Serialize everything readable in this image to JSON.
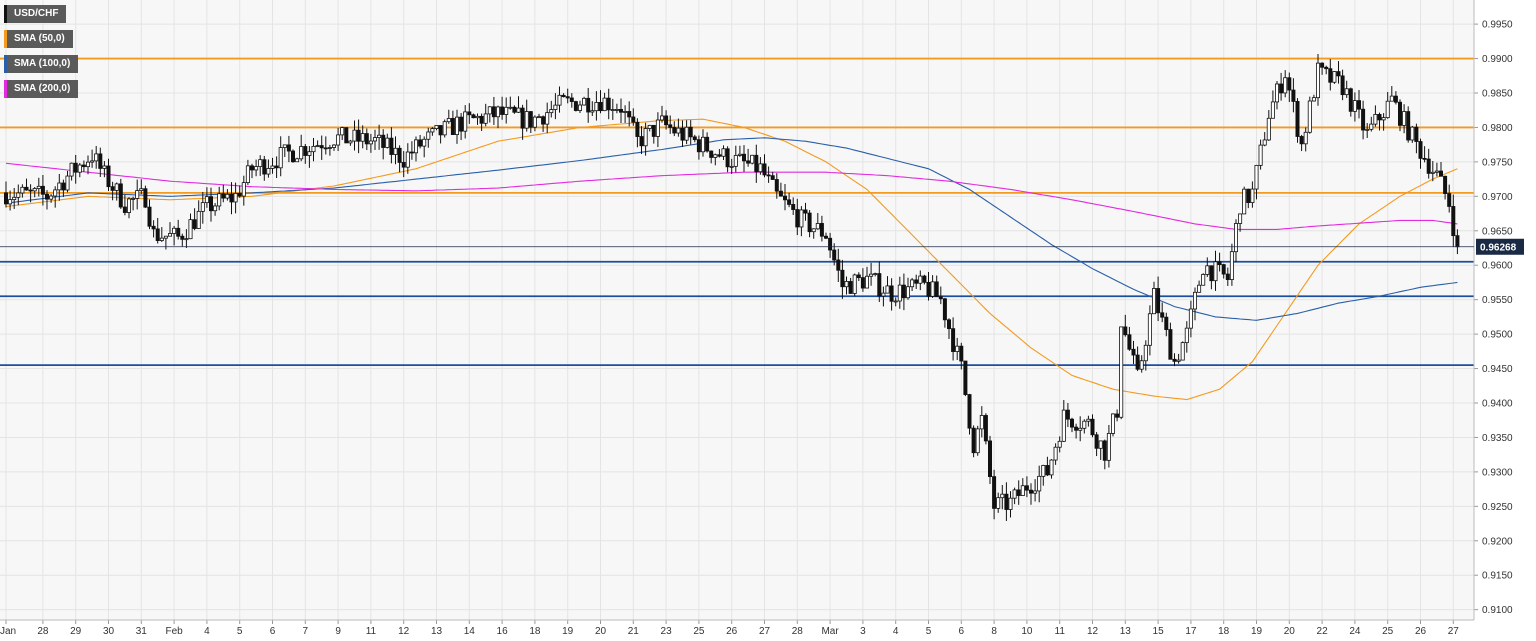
{
  "chart_data": {
    "type": "candlestick",
    "symbol": "USD/CHF",
    "ylim": [
      0.9085,
      0.9985
    ],
    "y_ticks": [
      0.91,
      0.915,
      0.92,
      0.925,
      0.93,
      0.935,
      0.94,
      0.945,
      0.95,
      0.955,
      0.96,
      0.965,
      0.97,
      0.975,
      0.98,
      0.985,
      0.99,
      0.995
    ],
    "y_tick_labels": [
      "0.9100",
      "0.9150",
      "0.9200",
      "0.9250",
      "0.9300",
      "0.9350",
      "0.9400",
      "0.9450",
      "0.9500",
      "0.9550",
      "0.9600",
      "0.9650",
      "0.9700",
      "0.9750",
      "0.9800",
      "0.9850",
      "0.9900",
      "0.9950"
    ],
    "x_ticks": [
      {
        "label": "Jan",
        "index": 0
      },
      {
        "label": "28",
        "index": 9
      },
      {
        "label": "29",
        "index": 17
      },
      {
        "label": "30",
        "index": 25
      },
      {
        "label": "31",
        "index": 33
      },
      {
        "label": "Feb",
        "index": 41
      },
      {
        "label": "4",
        "index": 49
      },
      {
        "label": "5",
        "index": 57
      },
      {
        "label": "6",
        "index": 65
      },
      {
        "label": "7",
        "index": 73
      },
      {
        "label": "9",
        "index": 81
      },
      {
        "label": "11",
        "index": 89
      },
      {
        "label": "12",
        "index": 97
      },
      {
        "label": "13",
        "index": 105
      },
      {
        "label": "14",
        "index": 113
      },
      {
        "label": "16",
        "index": 121
      },
      {
        "label": "18",
        "index": 129
      },
      {
        "label": "19",
        "index": 137
      },
      {
        "label": "20",
        "index": 145
      },
      {
        "label": "21",
        "index": 153
      },
      {
        "label": "23",
        "index": 161
      },
      {
        "label": "25",
        "index": 169
      },
      {
        "label": "26",
        "index": 177
      },
      {
        "label": "27",
        "index": 185
      },
      {
        "label": "28",
        "index": 193
      },
      {
        "label": "Mar",
        "index": 201
      },
      {
        "label": "3",
        "index": 209
      },
      {
        "label": "4",
        "index": 217
      },
      {
        "label": "5",
        "index": 225
      },
      {
        "label": "6",
        "index": 233
      },
      {
        "label": "8",
        "index": 241
      },
      {
        "label": "10",
        "index": 249
      },
      {
        "label": "11",
        "index": 257
      },
      {
        "label": "12",
        "index": 265
      },
      {
        "label": "13",
        "index": 273
      },
      {
        "label": "15",
        "index": 281
      },
      {
        "label": "17",
        "index": 289
      },
      {
        "label": "18",
        "index": 297
      },
      {
        "label": "19",
        "index": 305
      },
      {
        "label": "20",
        "index": 313
      },
      {
        "label": "22",
        "index": 321
      },
      {
        "label": "24",
        "index": 329
      },
      {
        "label": "25",
        "index": 337
      },
      {
        "label": "26",
        "index": 345
      },
      {
        "label": "27",
        "index": 353
      }
    ],
    "legend": [
      {
        "label": "USD/CHF",
        "color": "#111111"
      },
      {
        "label": "SMA (50,0)",
        "color": "#f39a1f"
      },
      {
        "label": "SMA (100,0)",
        "color": "#2a5fa8"
      },
      {
        "label": "SMA (200,0)",
        "color": "#e22be0"
      }
    ],
    "last_price": 0.96268,
    "last_price_label": "0.96268",
    "resistance_levels": [
      0.99,
      0.98,
      0.9705
    ],
    "support_levels": [
      0.9605,
      0.9555,
      0.9455
    ],
    "resistance_color": "#f39a1f",
    "support_color": "#1a4fa0",
    "anchors": [
      [
        0,
        0.9705
      ],
      [
        10,
        0.97
      ],
      [
        16,
        0.9735
      ],
      [
        21,
        0.976
      ],
      [
        24,
        0.973
      ],
      [
        29,
        0.969
      ],
      [
        34,
        0.97
      ],
      [
        36,
        0.9645
      ],
      [
        42,
        0.964
      ],
      [
        49,
        0.9685
      ],
      [
        56,
        0.97
      ],
      [
        60,
        0.974
      ],
      [
        70,
        0.9765
      ],
      [
        80,
        0.9785
      ],
      [
        90,
        0.978
      ],
      [
        97,
        0.9755
      ],
      [
        102,
        0.978
      ],
      [
        110,
        0.9805
      ],
      [
        120,
        0.982
      ],
      [
        128,
        0.981
      ],
      [
        136,
        0.9835
      ],
      [
        145,
        0.984
      ],
      [
        150,
        0.983
      ],
      [
        154,
        0.978
      ],
      [
        160,
        0.9805
      ],
      [
        168,
        0.978
      ],
      [
        176,
        0.9755
      ],
      [
        184,
        0.974
      ],
      [
        188,
        0.97
      ],
      [
        194,
        0.9665
      ],
      [
        200,
        0.9645
      ],
      [
        204,
        0.957
      ],
      [
        210,
        0.958
      ],
      [
        216,
        0.956
      ],
      [
        224,
        0.957
      ],
      [
        228,
        0.955
      ],
      [
        233,
        0.945
      ],
      [
        236,
        0.934
      ],
      [
        238,
        0.9375
      ],
      [
        241,
        0.925
      ],
      [
        245,
        0.9255
      ],
      [
        249,
        0.928
      ],
      [
        254,
        0.93
      ],
      [
        258,
        0.938
      ],
      [
        264,
        0.937
      ],
      [
        268,
        0.933
      ],
      [
        271,
        0.939
      ],
      [
        272,
        0.952
      ],
      [
        276,
        0.9435
      ],
      [
        280,
        0.9555
      ],
      [
        285,
        0.946
      ],
      [
        288,
        0.95
      ],
      [
        292,
        0.96
      ],
      [
        298,
        0.958
      ],
      [
        301,
        0.969
      ],
      [
        304,
        0.9705
      ],
      [
        308,
        0.982
      ],
      [
        312,
        0.988
      ],
      [
        316,
        0.9775
      ],
      [
        320,
        0.988
      ],
      [
        326,
        0.986
      ],
      [
        332,
        0.979
      ],
      [
        338,
        0.984
      ],
      [
        344,
        0.9775
      ],
      [
        349,
        0.973
      ],
      [
        352,
        0.969
      ],
      [
        354,
        0.9627
      ]
    ],
    "sma50": [
      [
        0,
        0.9685
      ],
      [
        20,
        0.97
      ],
      [
        40,
        0.9695
      ],
      [
        60,
        0.97
      ],
      [
        80,
        0.9715
      ],
      [
        100,
        0.974
      ],
      [
        120,
        0.978
      ],
      [
        140,
        0.98
      ],
      [
        150,
        0.9805
      ],
      [
        160,
        0.981
      ],
      [
        170,
        0.9812
      ],
      [
        180,
        0.98
      ],
      [
        190,
        0.978
      ],
      [
        200,
        0.975
      ],
      [
        210,
        0.971
      ],
      [
        220,
        0.965
      ],
      [
        230,
        0.959
      ],
      [
        240,
        0.953
      ],
      [
        250,
        0.948
      ],
      [
        260,
        0.944
      ],
      [
        270,
        0.942
      ],
      [
        280,
        0.941
      ],
      [
        288,
        0.9405
      ],
      [
        296,
        0.942
      ],
      [
        304,
        0.946
      ],
      [
        312,
        0.953
      ],
      [
        320,
        0.96
      ],
      [
        330,
        0.966
      ],
      [
        340,
        0.97
      ],
      [
        348,
        0.9725
      ],
      [
        354,
        0.974
      ]
    ],
    "sma100": [
      [
        0,
        0.969
      ],
      [
        20,
        0.9705
      ],
      [
        40,
        0.97
      ],
      [
        60,
        0.9705
      ],
      [
        80,
        0.9712
      ],
      [
        100,
        0.9725
      ],
      [
        120,
        0.9738
      ],
      [
        140,
        0.9752
      ],
      [
        160,
        0.9768
      ],
      [
        175,
        0.9782
      ],
      [
        185,
        0.9785
      ],
      [
        195,
        0.978
      ],
      [
        205,
        0.977
      ],
      [
        215,
        0.9755
      ],
      [
        225,
        0.974
      ],
      [
        235,
        0.971
      ],
      [
        245,
        0.967
      ],
      [
        255,
        0.963
      ],
      [
        265,
        0.9595
      ],
      [
        275,
        0.9565
      ],
      [
        285,
        0.954
      ],
      [
        295,
        0.9525
      ],
      [
        305,
        0.952
      ],
      [
        315,
        0.953
      ],
      [
        325,
        0.9545
      ],
      [
        335,
        0.9555
      ],
      [
        345,
        0.9568
      ],
      [
        354,
        0.9575
      ]
    ],
    "sma200": [
      [
        0,
        0.9748
      ],
      [
        20,
        0.9735
      ],
      [
        40,
        0.9722
      ],
      [
        60,
        0.9714
      ],
      [
        80,
        0.971
      ],
      [
        100,
        0.9708
      ],
      [
        120,
        0.9712
      ],
      [
        140,
        0.9722
      ],
      [
        160,
        0.973
      ],
      [
        180,
        0.9735
      ],
      [
        200,
        0.9735
      ],
      [
        215,
        0.973
      ],
      [
        230,
        0.9722
      ],
      [
        245,
        0.971
      ],
      [
        260,
        0.9695
      ],
      [
        275,
        0.9678
      ],
      [
        290,
        0.966
      ],
      [
        300,
        0.9652
      ],
      [
        310,
        0.9652
      ],
      [
        320,
        0.9657
      ],
      [
        330,
        0.9661
      ],
      [
        340,
        0.9665
      ],
      [
        348,
        0.9665
      ],
      [
        354,
        0.966
      ]
    ]
  }
}
